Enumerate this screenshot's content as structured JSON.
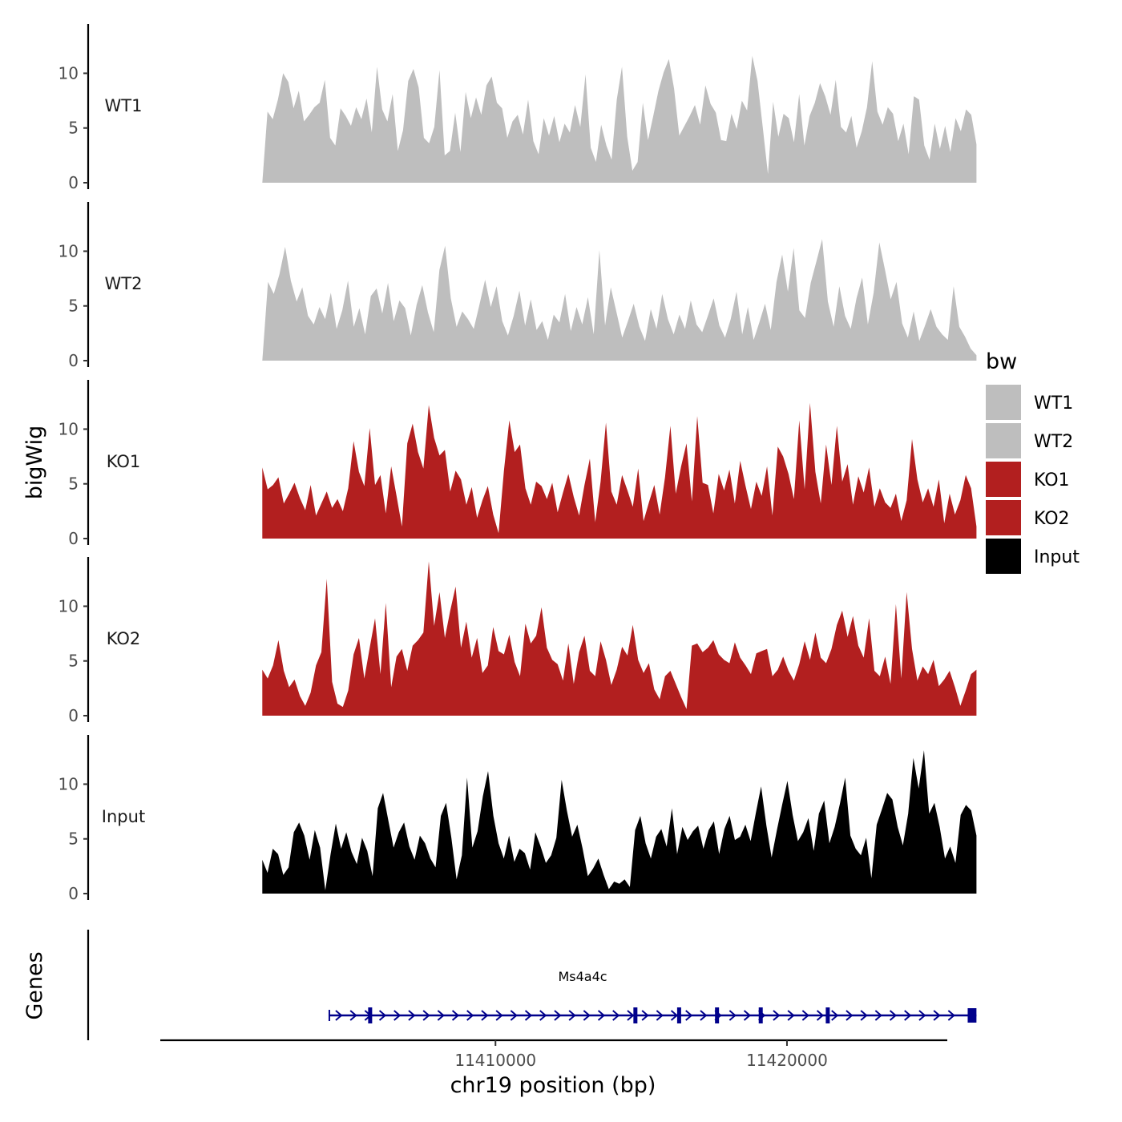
{
  "chart_data": {
    "type": "area",
    "ylabel": "bigWig",
    "xlabel": "chr19 position (bp)",
    "genes_label": "Genes",
    "xlim": [
      11398500,
      11425500
    ],
    "data_xrange": [
      11402000,
      11426500
    ],
    "ylim": [
      0,
      14.5
    ],
    "y_ticks": [
      "0",
      "5",
      "10"
    ],
    "y_tick_values": [
      0,
      5,
      10
    ],
    "x_ticks": [
      "11410000",
      "11420000"
    ],
    "x_tick_values": [
      11410000,
      11420000
    ],
    "legend": {
      "title": "bw",
      "entries": [
        {
          "label": "WT1",
          "color": "#bebebe"
        },
        {
          "label": "WT2",
          "color": "#bebebe"
        },
        {
          "label": "KO1",
          "color": "#b21f1f"
        },
        {
          "label": "KO2",
          "color": "#b21f1f"
        },
        {
          "label": "Input",
          "color": "#000000"
        }
      ]
    },
    "series": [
      {
        "name": "WT1",
        "color": "#bebebe",
        "values": [
          0,
          6.5,
          5.8,
          7.6,
          10,
          9.2,
          6.8,
          8.4,
          5.6,
          6.2,
          6.9,
          7.3,
          9.4,
          4.1,
          3.4,
          6.8,
          6.1,
          5.2,
          6.9,
          5.8,
          7.7,
          4.6,
          10.6,
          6.7,
          5.6,
          8.1,
          2.9,
          4.8,
          9.3,
          10.4,
          8.7,
          4.1,
          3.6,
          5.1,
          10.3,
          2.5,
          2.9,
          6.4,
          2.8,
          8.3,
          5.9,
          7.8,
          6.2,
          8.9,
          9.7,
          7.3,
          6.8,
          4.1,
          5.6,
          6.2,
          4.4,
          7.6,
          3.8,
          2.6,
          5.9,
          4.3,
          6.1,
          3.7,
          5.4,
          4.6,
          7.1,
          5.1,
          9.9,
          3.2,
          1.9,
          5.3,
          3.4,
          2.1,
          7.6,
          10.6,
          4.2,
          1.1,
          1.9,
          7.3,
          3.9,
          6.1,
          8.4,
          10.1,
          11.3,
          8.6,
          4.3,
          5.2,
          6.1,
          7.1,
          5.3,
          8.9,
          7.2,
          6.4,
          3.9,
          3.8,
          6.3,
          4.9,
          7.5,
          6.6,
          11.6,
          9.3,
          5.1,
          0.8,
          7.4,
          4.2,
          6.3,
          5.9,
          3.7,
          8.1,
          3.4,
          6.1,
          7.3,
          9.1,
          7.9,
          6.2,
          9.4,
          5.1,
          4.6,
          6.1,
          3.2,
          4.7,
          6.9,
          11.1,
          6.5,
          5.3,
          6.9,
          6.3,
          3.8,
          5.4,
          2.6,
          7.9,
          7.6,
          3.4,
          2.1,
          5.4,
          3.1,
          5.2,
          2.8,
          5.9,
          4.7,
          6.7,
          6.2,
          3.5
        ]
      },
      {
        "name": "WT2",
        "color": "#bebebe",
        "values": [
          0,
          7.2,
          6.1,
          7.9,
          10.4,
          7.3,
          5.4,
          6.7,
          4.1,
          3.3,
          4.9,
          3.8,
          6.2,
          2.9,
          4.6,
          7.3,
          3.1,
          4.8,
          2.4,
          5.9,
          6.6,
          4.3,
          7.1,
          3.6,
          5.5,
          4.8,
          2.3,
          5.1,
          6.9,
          4.4,
          2.6,
          8.3,
          10.5,
          5.7,
          3.1,
          4.5,
          3.8,
          2.9,
          5.1,
          7.4,
          4.9,
          6.8,
          3.6,
          2.3,
          4.1,
          6.4,
          3.2,
          5.6,
          2.8,
          3.6,
          1.9,
          4.2,
          3.5,
          6.1,
          2.7,
          4.9,
          3.3,
          5.8,
          2.4,
          10.1,
          3.2,
          6.7,
          4.4,
          2.1,
          3.6,
          5.2,
          3.1,
          1.8,
          4.7,
          2.9,
          6.1,
          3.8,
          2.4,
          4.2,
          2.9,
          5.5,
          3.3,
          2.6,
          4.1,
          5.7,
          3.2,
          2.1,
          3.8,
          6.3,
          2.4,
          4.9,
          1.9,
          3.5,
          5.2,
          2.8,
          7.2,
          9.7,
          6.3,
          10.3,
          4.6,
          3.9,
          7.1,
          9.1,
          11.1,
          5.4,
          3.1,
          6.8,
          4.1,
          2.9,
          5.7,
          7.6,
          3.3,
          6.2,
          10.8,
          8.3,
          5.6,
          7.2,
          3.4,
          2.1,
          4.5,
          1.8,
          3.2,
          4.7,
          3.1,
          2.4,
          1.9,
          6.8,
          3.1,
          2.2,
          1.1,
          0.5
        ]
      },
      {
        "name": "KO1",
        "color": "#b21f1f",
        "values": [
          6.5,
          4.5,
          4.9,
          5.6,
          3.2,
          4.1,
          5.1,
          3.7,
          2.6,
          4.9,
          2.1,
          3.2,
          4.3,
          2.8,
          3.6,
          2.5,
          4.6,
          8.9,
          6.1,
          4.8,
          10.1,
          4.9,
          5.8,
          2.3,
          6.6,
          3.9,
          1.1,
          8.7,
          10.5,
          7.9,
          6.4,
          12.2,
          9.2,
          7.6,
          8.1,
          4.3,
          6.2,
          5.4,
          3.1,
          4.7,
          1.9,
          3.5,
          4.8,
          2.2,
          0.5,
          6.2,
          10.8,
          7.9,
          8.6,
          4.6,
          3.1,
          5.2,
          4.8,
          3.6,
          5.1,
          2.4,
          4.2,
          5.9,
          3.8,
          2.1,
          4.9,
          7.3,
          1.5,
          5.2,
          10.6,
          4.3,
          3.1,
          5.8,
          4.4,
          2.9,
          6.4,
          1.6,
          3.3,
          4.9,
          2.2,
          5.6,
          10.3,
          4.1,
          6.6,
          8.7,
          3.4,
          11.2,
          5.1,
          4.9,
          2.3,
          5.9,
          4.4,
          6.3,
          3.2,
          7.1,
          4.8,
          2.7,
          5.2,
          3.9,
          6.6,
          2.1,
          8.4,
          7.5,
          5.9,
          3.6,
          10.8,
          4.5,
          12.4,
          6.1,
          3.2,
          8.6,
          4.9,
          10.3,
          5.2,
          6.8,
          3.1,
          5.7,
          4.2,
          6.5,
          2.9,
          4.6,
          3.3,
          2.8,
          4.1,
          1.6,
          3.5,
          9.1,
          5.4,
          3.3,
          4.6,
          2.9,
          5.4,
          1.4,
          4.1,
          2.2,
          3.5,
          5.8,
          4.6,
          1.1
        ]
      },
      {
        "name": "KO2",
        "color": "#b21f1f",
        "values": [
          4.2,
          3.4,
          4.6,
          6.9,
          4.1,
          2.6,
          3.3,
          1.8,
          0.9,
          2.1,
          4.6,
          5.8,
          12.5,
          3.1,
          1.1,
          0.8,
          2.3,
          5.6,
          7.1,
          3.4,
          6.2,
          8.9,
          3.8,
          10.3,
          2.6,
          5.4,
          6.1,
          4.1,
          6.4,
          6.9,
          7.6,
          14.1,
          8.2,
          11.3,
          7.1,
          9.6,
          11.8,
          6.2,
          8.6,
          5.3,
          7.1,
          3.9,
          4.6,
          8.1,
          5.9,
          5.6,
          7.4,
          4.9,
          3.6,
          8.4,
          6.6,
          7.3,
          9.9,
          6.2,
          5.1,
          4.7,
          3.2,
          6.6,
          2.9,
          5.8,
          7.3,
          4.1,
          3.6,
          6.8,
          5.1,
          2.8,
          4.2,
          6.3,
          5.5,
          8.3,
          5.1,
          3.9,
          4.8,
          2.4,
          1.5,
          3.6,
          4.1,
          2.9,
          1.7,
          0.6,
          6.4,
          6.6,
          5.8,
          6.2,
          6.9,
          5.6,
          5.1,
          4.8,
          6.7,
          5.3,
          4.6,
          3.8,
          5.7,
          5.9,
          6.1,
          3.6,
          4.2,
          5.4,
          4.1,
          3.2,
          4.7,
          6.8,
          5.1,
          7.6,
          5.3,
          4.8,
          6.1,
          8.3,
          9.6,
          7.2,
          9.1,
          6.4,
          5.3,
          8.9,
          4.1,
          3.6,
          5.4,
          2.9,
          10.2,
          3.4,
          11.3,
          6.1,
          3.2,
          4.5,
          3.8,
          5.1,
          2.7,
          3.3,
          4.1,
          2.6,
          0.9,
          2.3,
          3.8,
          4.2
        ]
      },
      {
        "name": "Input",
        "color": "#000000",
        "values": [
          3.1,
          1.9,
          4.1,
          3.6,
          1.7,
          2.4,
          5.6,
          6.5,
          5.3,
          3.1,
          5.8,
          4.2,
          0.3,
          3.6,
          6.4,
          4.1,
          5.6,
          3.8,
          2.7,
          5.1,
          3.9,
          1.6,
          7.8,
          9.2,
          6.7,
          4.2,
          5.6,
          6.5,
          4.3,
          3.1,
          5.3,
          4.6,
          3.2,
          2.4,
          7.1,
          8.3,
          5.1,
          1.3,
          3.5,
          10.6,
          4.2,
          5.7,
          8.9,
          11.2,
          7.1,
          4.6,
          3.2,
          5.3,
          2.9,
          4.1,
          3.7,
          2.2,
          5.6,
          4.3,
          2.8,
          3.5,
          5.1,
          10.4,
          7.6,
          5.2,
          6.3,
          4.1,
          1.6,
          2.3,
          3.2,
          1.7,
          0.4,
          1.1,
          0.9,
          1.3,
          0.6,
          5.8,
          7.1,
          4.6,
          3.2,
          5.2,
          5.9,
          4.3,
          7.8,
          3.6,
          6.1,
          4.9,
          5.7,
          6.2,
          4.1,
          5.8,
          6.6,
          3.6,
          5.9,
          7.1,
          4.9,
          5.2,
          6.3,
          4.8,
          7.4,
          9.8,
          6.2,
          3.3,
          5.8,
          8.1,
          10.3,
          7.2,
          4.8,
          5.6,
          6.9,
          3.9,
          7.3,
          8.5,
          4.6,
          6.1,
          8.2,
          10.6,
          5.3,
          4.1,
          3.5,
          5.1,
          1.4,
          6.3,
          7.7,
          9.2,
          8.6,
          6.1,
          4.4,
          7.3,
          12.4,
          9.6,
          13.1,
          7.3,
          8.3,
          6.1,
          3.2,
          4.3,
          2.8,
          7.2,
          8.1,
          7.6,
          5.3
        ]
      }
    ],
    "gene": {
      "name": "Ms4a4c",
      "start": 11404300,
      "end": 11426500,
      "strand": "+",
      "color": "#00008b",
      "exons_thin": [
        11405700,
        11414800,
        11416300,
        11417600,
        11419100,
        11421400
      ],
      "exon_thick": [
        11426200,
        11426500
      ]
    }
  }
}
